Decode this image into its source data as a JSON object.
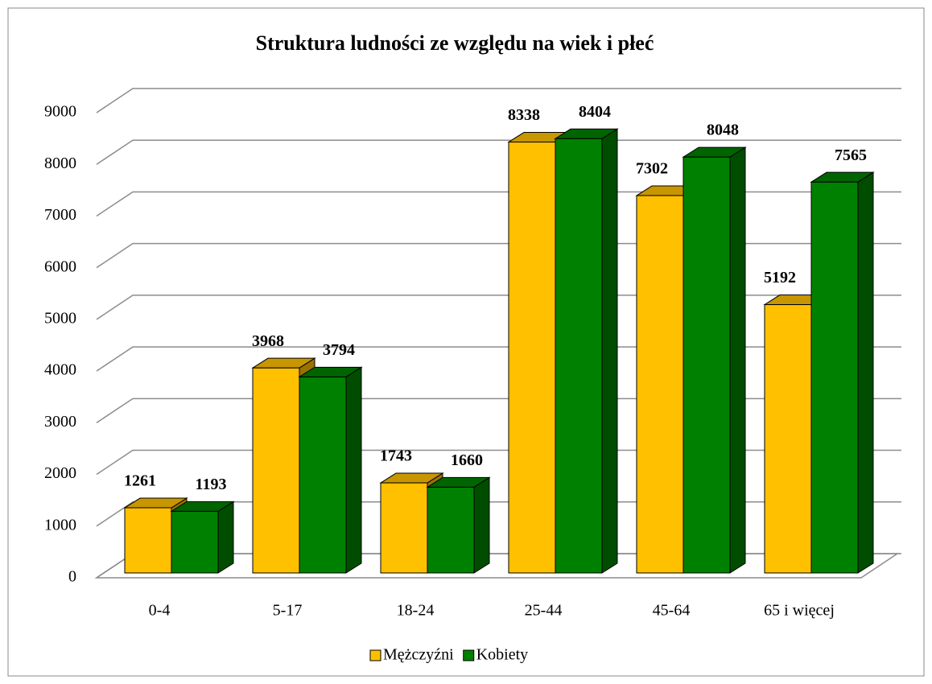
{
  "chart_data": {
    "type": "bar3d",
    "title": "Struktura ludności ze względu na wiek i płeć",
    "categories": [
      "0-4",
      "5-17",
      "18-24",
      "25-44",
      "45-64",
      "65 i więcej"
    ],
    "series": [
      {
        "name": "Mężczyźni",
        "color": "#ffc000",
        "values": [
          1261,
          3968,
          1743,
          8338,
          7302,
          5192
        ]
      },
      {
        "name": "Kobiety",
        "color": "#008000",
        "values": [
          1193,
          3794,
          1660,
          8404,
          8048,
          7565
        ]
      }
    ],
    "ylim": [
      0,
      9000
    ],
    "yticks": [
      0,
      1000,
      2000,
      3000,
      4000,
      5000,
      6000,
      7000,
      8000,
      9000
    ],
    "grid": true,
    "legend": "bottom"
  }
}
